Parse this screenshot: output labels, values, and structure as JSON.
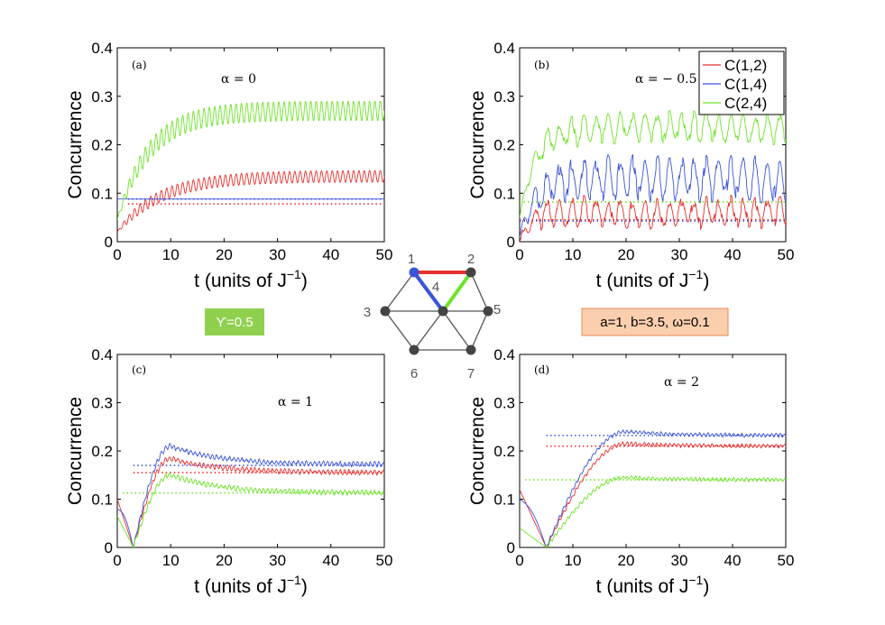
{
  "colors": {
    "c12": "#e8302d",
    "c14": "#3b55d9",
    "c24": "#6fe32a",
    "axis": "#000000"
  },
  "chart_data": [
    {
      "type": "line",
      "panel": "(a)",
      "alpha_text": "α = 0",
      "xlabel": "t (units of J",
      "xlabel_sup": "−1",
      "xlabel_end": ")",
      "ylabel": "Concurrence",
      "xlim": [
        0,
        50
      ],
      "ylim": [
        0,
        0.4
      ],
      "xticks": [
        "0",
        "10",
        "20",
        "30",
        "40",
        "50"
      ],
      "yticks": [
        "0",
        "0.1",
        "0.2",
        "0.3",
        "0.4"
      ],
      "legend": false,
      "series": [
        {
          "name": "C(1,2)",
          "color": "c12",
          "steady": 0.135,
          "start": 0.02,
          "tau": 8,
          "osc": 0.012,
          "period": 1.0,
          "delay": 0,
          "dip": 0,
          "dip_t": 0
        },
        {
          "name": "C(1,4)",
          "color": "c14",
          "steady": 0.088,
          "start": 0.088,
          "tau": 1,
          "osc": 0,
          "period": 1.0,
          "delay": 0,
          "dip": 0,
          "dip_t": 0
        },
        {
          "name": "C(2,4)",
          "color": "c24",
          "steady": 0.27,
          "start": 0.045,
          "tau": 6,
          "osc": 0.02,
          "period": 1.0,
          "delay": 0,
          "dip": 0,
          "dip_t": 0
        }
      ],
      "reference": [
        {
          "color": "c12",
          "value": 0.078,
          "x_from": 2
        },
        {
          "color": "c14",
          "value": 0.088,
          "x_from": 2
        }
      ]
    },
    {
      "type": "line",
      "panel": "(b)",
      "alpha_text": "α = − 0.5",
      "xlabel": "t (units of J",
      "xlabel_sup": "−1",
      "xlabel_end": ")",
      "ylabel": "Concurrence",
      "xlim": [
        0,
        50
      ],
      "ylim": [
        0,
        0.4
      ],
      "xticks": [
        "0",
        "10",
        "20",
        "30",
        "40",
        "50"
      ],
      "yticks": [
        "0",
        "0.1",
        "0.2",
        "0.3",
        "0.4"
      ],
      "legend": true,
      "series": [
        {
          "name": "C(1,2)",
          "color": "c12",
          "steady": 0.06,
          "start": 0.0,
          "tau": 2,
          "osc": 0.025,
          "period": 2.3,
          "delay": 0,
          "dip": 0,
          "dip_t": 0
        },
        {
          "name": "C(1,4)",
          "color": "c14",
          "steady": 0.13,
          "start": 0.01,
          "tau": 3,
          "osc": 0.035,
          "period": 2.3,
          "delay": 0,
          "dip": 0,
          "dip_t": 0
        },
        {
          "name": "C(2,4)",
          "color": "c24",
          "steady": 0.235,
          "start": 0.05,
          "tau": 3,
          "osc": 0.025,
          "period": 2.3,
          "delay": 0,
          "dip": 0,
          "dip_t": 0
        }
      ],
      "reference": [
        {
          "color": "c12",
          "value": 0.045,
          "x_from": 0
        },
        {
          "color": "c14",
          "value": 0.043,
          "x_from": 0
        },
        {
          "color": "c24",
          "value": 0.082,
          "x_from": 0
        }
      ]
    },
    {
      "type": "line",
      "panel": "(c)",
      "alpha_text": "α = 1",
      "xlabel": "t (units of J",
      "xlabel_sup": "−1",
      "xlabel_end": ")",
      "ylabel": "Concurrence",
      "xlim": [
        0,
        50
      ],
      "ylim": [
        0,
        0.4
      ],
      "xticks": [
        "0",
        "10",
        "20",
        "30",
        "40",
        "50"
      ],
      "yticks": [
        "0",
        "0.1",
        "0.2",
        "0.3",
        "0.4"
      ],
      "legend": false,
      "series": [
        {
          "name": "C(1,2)",
          "color": "c12",
          "steady": 0.155,
          "start": 0.1,
          "peak": 0.185,
          "peak_t": 10,
          "osc": 0.004,
          "period": 0.8,
          "dip_t": 3
        },
        {
          "name": "C(1,4)",
          "color": "c14",
          "steady": 0.172,
          "start": 0.08,
          "peak": 0.21,
          "peak_t": 10,
          "osc": 0.004,
          "period": 0.8,
          "dip_t": 3
        },
        {
          "name": "C(2,4)",
          "color": "c24",
          "steady": 0.113,
          "start": 0.065,
          "peak": 0.15,
          "peak_t": 10,
          "osc": 0.004,
          "period": 0.8,
          "dip_t": 3
        }
      ],
      "reference": [
        {
          "color": "c12",
          "value": 0.155,
          "x_from": 3
        },
        {
          "color": "c14",
          "value": 0.17,
          "x_from": 3
        },
        {
          "color": "c24",
          "value": 0.113,
          "x_from": 1
        }
      ]
    },
    {
      "type": "line",
      "panel": "(d)",
      "alpha_text": "α = 2",
      "xlabel": "t (units of J",
      "xlabel_sup": "−1",
      "xlabel_end": ")",
      "ylabel": "Concurrence",
      "xlim": [
        0,
        50
      ],
      "ylim": [
        0,
        0.4
      ],
      "xticks": [
        "0",
        "10",
        "20",
        "30",
        "40",
        "50"
      ],
      "yticks": [
        "0",
        "0.1",
        "0.2",
        "0.3",
        "0.4"
      ],
      "legend": false,
      "series": [
        {
          "name": "C(1,2)",
          "color": "c12",
          "steady": 0.21,
          "start": 0.12,
          "peak": 0.215,
          "peak_t": 20,
          "osc": 0.003,
          "period": 0.8,
          "dip_t": 5
        },
        {
          "name": "C(1,4)",
          "color": "c14",
          "steady": 0.232,
          "start": 0.1,
          "peak": 0.24,
          "peak_t": 20,
          "osc": 0.003,
          "period": 0.8,
          "dip_t": 5
        },
        {
          "name": "C(2,4)",
          "color": "c24",
          "steady": 0.14,
          "start": 0.04,
          "peak": 0.145,
          "peak_t": 20,
          "osc": 0.003,
          "period": 0.8,
          "dip_t": 5
        }
      ],
      "reference": [
        {
          "color": "c12",
          "value": 0.21,
          "x_from": 5
        },
        {
          "color": "c14",
          "value": 0.232,
          "x_from": 5
        },
        {
          "color": "c24",
          "value": 0.14,
          "x_from": 1
        }
      ]
    }
  ],
  "lattice": {
    "nodes": [
      "1",
      "2",
      "3",
      "4",
      "5",
      "6",
      "7"
    ],
    "bonds": [
      {
        "from": "1",
        "to": "2",
        "color": "c12"
      },
      {
        "from": "1",
        "to": "4",
        "color": "c14"
      },
      {
        "from": "2",
        "to": "4",
        "color": "c24"
      }
    ]
  },
  "info_boxes": {
    "gamma": "ϒ=0.5",
    "gamma_bg": "#8fd14f",
    "params": "a=1, b=3.5, ω=0.1",
    "params_bg": "#fbcfae",
    "params_border": "#e88b52"
  }
}
